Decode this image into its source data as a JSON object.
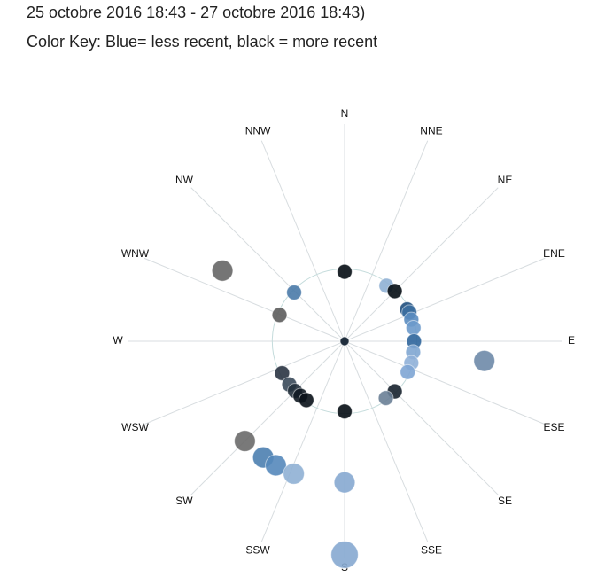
{
  "chart_data": {
    "type": "polar-scatter",
    "title": "25 octobre 2016 18:43 - 27 octobre 2016 18:43)",
    "subtitle": "Color Key: Blue= less recent, black = more recent",
    "directions": [
      "N",
      "NNE",
      "NE",
      "ENE",
      "E",
      "ESE",
      "SE",
      "SSE",
      "S",
      "SSW",
      "SW",
      "WSW",
      "W",
      "WNW",
      "NW",
      "NNW"
    ],
    "rlim": [
      0,
      3
    ],
    "rticks": [
      1
    ],
    "points": [
      {
        "angle": 0,
        "r": 0.96,
        "color": "#050d14"
      },
      {
        "angle": 180,
        "r": 0.97,
        "color": "#050d14"
      },
      {
        "angle": 0,
        "r": 0,
        "color": "#0a1a2a"
      },
      {
        "angle": 314,
        "r": 0.97,
        "color": "#4a7aa8"
      },
      {
        "angle": 292,
        "r": 0.97,
        "color": "#5c5c5c"
      },
      {
        "angle": 300,
        "r": 1.95,
        "color": "#666666"
      },
      {
        "angle": 37,
        "r": 0.96,
        "color": "#8fb0d4"
      },
      {
        "angle": 45,
        "r": 0.98,
        "color": "#050d14"
      },
      {
        "angle": 63,
        "r": 0.97,
        "color": "#1f4f7e"
      },
      {
        "angle": 66,
        "r": 0.98,
        "color": "#3c6fa0"
      },
      {
        "angle": 72,
        "r": 0.97,
        "color": "#5a8cc0"
      },
      {
        "angle": 79,
        "r": 0.97,
        "color": "#6d9acb"
      },
      {
        "angle": 90,
        "r": 0.96,
        "color": "#2f659b"
      },
      {
        "angle": 99,
        "r": 0.96,
        "color": "#7fa6d2"
      },
      {
        "angle": 108,
        "r": 0.97,
        "color": "#8fb0d8"
      },
      {
        "angle": 116,
        "r": 0.97,
        "color": "#7ea5d4"
      },
      {
        "angle": 135,
        "r": 0.98,
        "color": "#17222d"
      },
      {
        "angle": 144,
        "r": 0.97,
        "color": "#6a7f96"
      },
      {
        "angle": 98,
        "r": 1.95,
        "color": "#6e8aa8"
      },
      {
        "angle": 243,
        "r": 0.97,
        "color": "#2a3442"
      },
      {
        "angle": 232,
        "r": 0.97,
        "color": "#3b4a5a"
      },
      {
        "angle": 225,
        "r": 0.97,
        "color": "#24303c"
      },
      {
        "angle": 219,
        "r": 0.97,
        "color": "#111a22"
      },
      {
        "angle": 213,
        "r": 0.97,
        "color": "#0a1219"
      },
      {
        "angle": 225,
        "r": 1.95,
        "color": "#6a6a6a"
      },
      {
        "angle": 215,
        "r": 1.96,
        "color": "#4d7fb0"
      },
      {
        "angle": 209,
        "r": 1.96,
        "color": "#5588bb"
      },
      {
        "angle": 201,
        "r": 1.96,
        "color": "#8fb0d4"
      },
      {
        "angle": 180,
        "r": 1.95,
        "color": "#86a9d0"
      },
      {
        "angle": 180,
        "r": 2.95,
        "color": "#86a9d0"
      }
    ]
  }
}
